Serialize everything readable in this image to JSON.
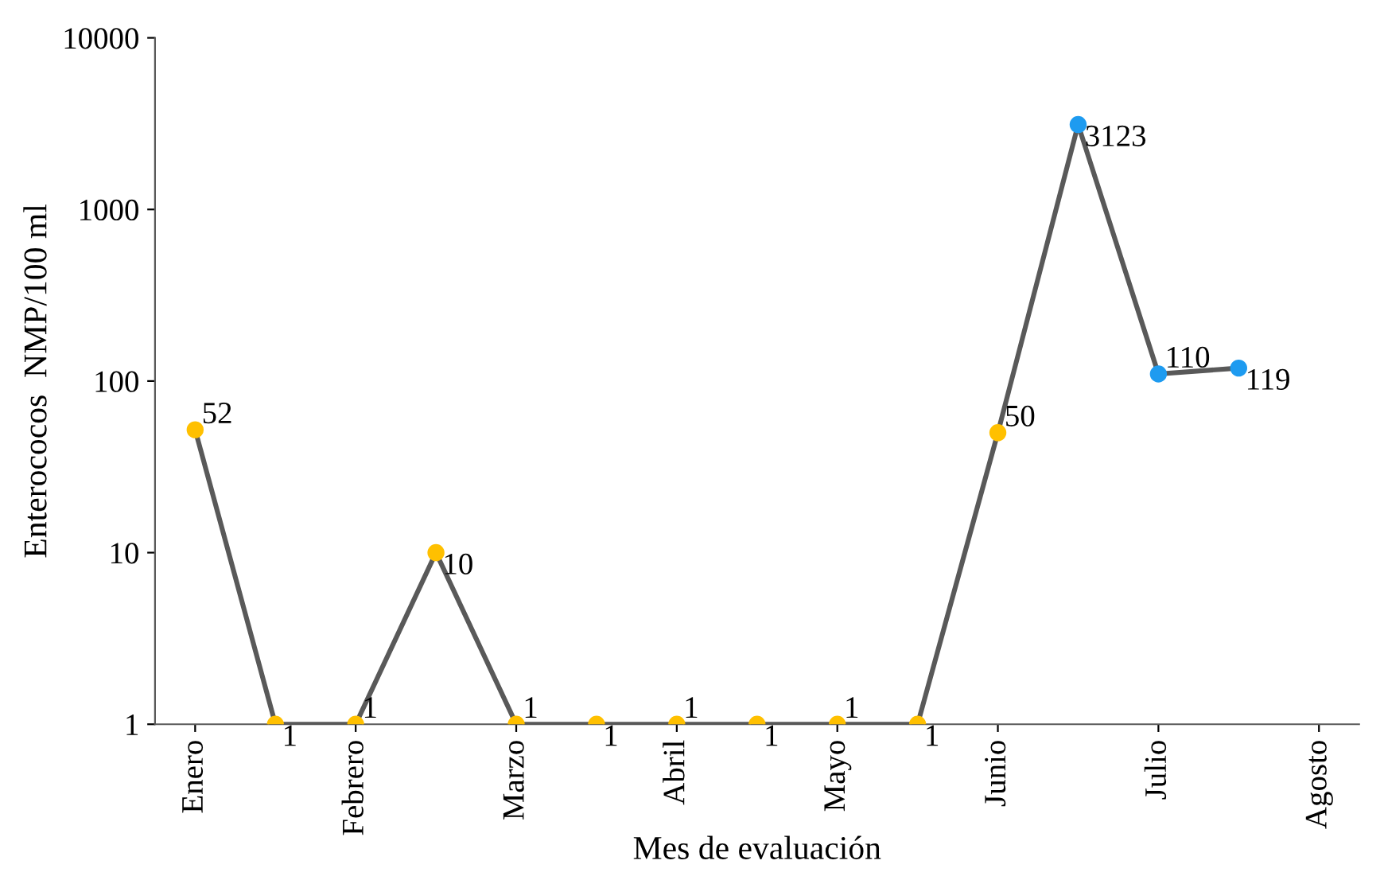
{
  "chart_data": {
    "type": "line",
    "xlabel": "Mes de evaluación",
    "ylabel": "Enterococos  NMP/100 ml",
    "categories": [
      "Enero",
      null,
      "Febrero",
      null,
      "Marzo",
      null,
      "Abril",
      null,
      "Mayo",
      null,
      "Junio",
      null,
      "Julio",
      null,
      "Agosto"
    ],
    "series": [
      {
        "color": "#595959",
        "colors": [
          "#ffc000",
          "#ffc000",
          "#ffc000",
          "#ffc000",
          "#ffc000",
          "#ffc000",
          "#ffc000",
          "#ffc000",
          "#ffc000",
          "#ffc000",
          "#ffc000",
          "#1e9bf0",
          "#1e9bf0",
          "#1e9bf0",
          null
        ],
        "values": [
          52,
          1,
          1,
          10,
          1,
          1,
          1,
          1,
          1,
          1,
          50,
          3123,
          110,
          119,
          null
        ]
      }
    ],
    "log": true,
    "ylim": [
      1,
      10000
    ],
    "yticks": [
      1,
      10,
      100,
      1000,
      10000
    ],
    "grid": false,
    "legend": false,
    "marker": "circle",
    "line_style": "solid",
    "data_labels": true
  }
}
